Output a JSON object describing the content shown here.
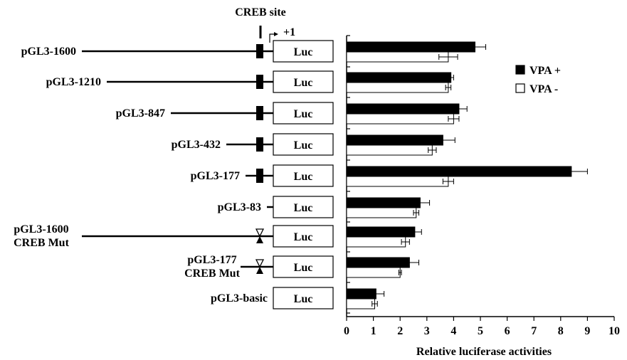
{
  "chart_data": {
    "type": "bar",
    "orientation": "horizontal",
    "xlabel": "Relative luciferase activities",
    "xlim": [
      0,
      10
    ],
    "x_ticks": [
      "0",
      "1",
      "2",
      "3",
      "4",
      "5",
      "6",
      "7",
      "8",
      "9",
      "10"
    ],
    "legend_position": "top-right",
    "grid": false,
    "categories": [
      "pGL3-1600",
      "pGL3-1210",
      "pGL3-847",
      "pGL3-432",
      "pGL3-177",
      "pGL3-83",
      "pGL3-1600 CREB Mut",
      "pGL3-177 CREB Mut",
      "pGL3-basic"
    ],
    "series": [
      {
        "name": "VPA +",
        "color": "#000000",
        "values": [
          4.8,
          3.9,
          4.2,
          3.6,
          8.4,
          2.75,
          2.55,
          2.35,
          1.1
        ],
        "errors": [
          0.4,
          0.1,
          0.3,
          0.45,
          0.6,
          0.35,
          0.25,
          0.35,
          0.3
        ]
      },
      {
        "name": "VPA -",
        "color": "#ffffff",
        "values": [
          3.8,
          3.8,
          4.0,
          3.2,
          3.8,
          2.6,
          2.2,
          2.0,
          1.05
        ],
        "errors": [
          0.35,
          0.1,
          0.2,
          0.15,
          0.2,
          0.1,
          0.15,
          0.05,
          0.1
        ]
      }
    ]
  },
  "construct_labels": [
    [
      "pGL3-1600"
    ],
    [
      "pGL3-1210"
    ],
    [
      "pGL3-847"
    ],
    [
      "pGL3-432"
    ],
    [
      "pGL3-177"
    ],
    [
      "pGL3-83"
    ],
    [
      "pGL3-1600",
      "CREB Mut"
    ],
    [
      "pGL3-177",
      "CREB Mut"
    ],
    [
      "pGL3-basic"
    ]
  ],
  "constructs": {
    "creb_site_label": "CREB site",
    "tss_label": "+1",
    "reporter_label": "Luc",
    "line_starts": [
      115,
      150,
      240,
      318,
      345,
      375,
      115,
      338,
      null
    ],
    "creb_state": [
      "wt",
      "wt",
      "wt",
      "wt",
      "wt",
      "none",
      "mut",
      "mut",
      "none"
    ]
  }
}
